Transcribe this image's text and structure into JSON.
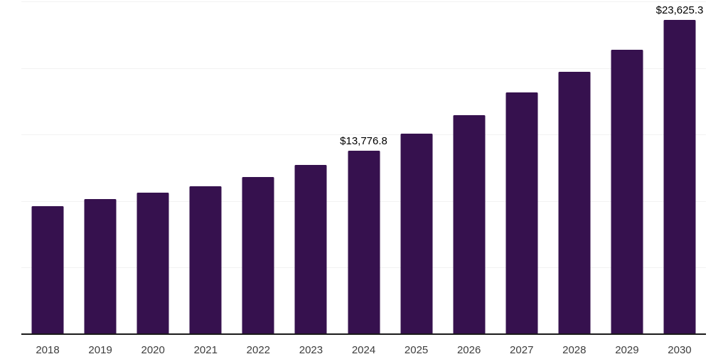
{
  "chart_data": {
    "type": "bar",
    "title": "",
    "xlabel": "",
    "ylabel": "",
    "categories": [
      "2018",
      "2019",
      "2020",
      "2021",
      "2022",
      "2023",
      "2024",
      "2025",
      "2026",
      "2027",
      "2028",
      "2029",
      "2030"
    ],
    "values": [
      9620,
      10130,
      10610,
      11090,
      11780,
      12690,
      13776.8,
      15080,
      16470,
      18180,
      19720,
      21370,
      23625.3
    ],
    "data_labels": {
      "2024": "$13,776.8",
      "2030": "$23,625.3"
    },
    "ylim": [
      0,
      25000
    ],
    "gridline_step": 5000,
    "grid": "horizontal-only",
    "legend": "none"
  },
  "colors": {
    "background": "#ffffff",
    "bar": "#36114e",
    "gridline": "#f2f2f2",
    "axis_line": "#1a1a1a",
    "tick_label": "#3d3d3d",
    "data_label": "#000000"
  }
}
